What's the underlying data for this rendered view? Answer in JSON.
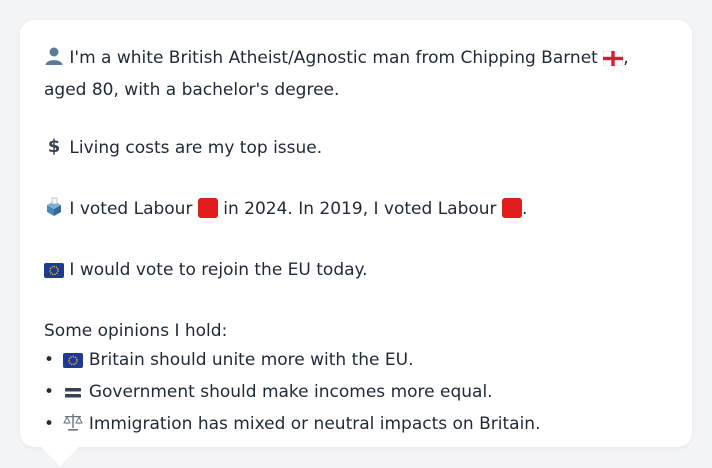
{
  "profile": {
    "intro": "I'm a white British Atheist/Agnostic man from Chipping Barnet",
    "intro_tail": ", aged 80, with a bachelor's degree.",
    "issue": "Living costs are my top issue.",
    "vote_a": "I voted Labour",
    "vote_b": "in 2024. In 2019, I voted Labour",
    "vote_c": ".",
    "eu": "I would vote to rejoin the EU today.",
    "opinions_heading": "Some opinions I hold:",
    "opinions": [
      "Britain should unite more with the EU.",
      "Government should make incomes more equal.",
      "Immigration has mixed or neutral impacts on Britain."
    ],
    "bullet": "•"
  },
  "icons": [
    "person-icon",
    "england-flag-icon",
    "dollar-icon",
    "ballot-box-icon",
    "labour-red-square-icon",
    "eu-flag-icon",
    "equals-icon",
    "scales-icon"
  ],
  "colors": {
    "background": "#f3f4f6",
    "card": "#ffffff",
    "text": "#1f2937",
    "labour_red": "#e11d1d",
    "eu_blue": "#1f3a93"
  }
}
